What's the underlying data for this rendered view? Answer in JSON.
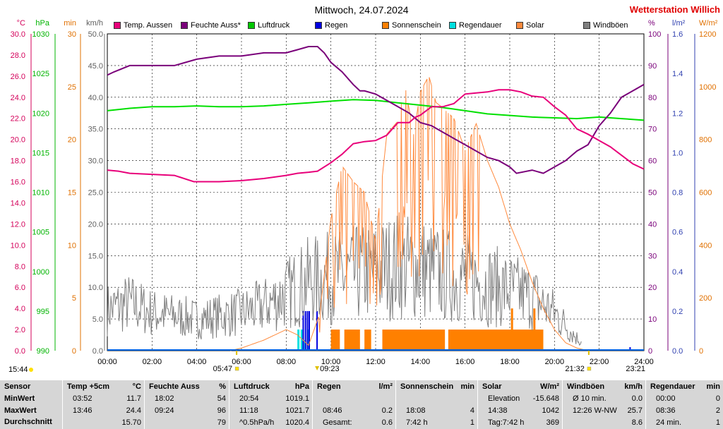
{
  "title": "Mittwoch, 24.07.2024",
  "brand": "Wetterstation Willich",
  "legend": [
    {
      "label": "Temp. Aussen",
      "color": "#e8007a"
    },
    {
      "label": "Feuchte Auss*",
      "color": "#7a007a"
    },
    {
      "label": "Luftdruck",
      "color": "#00c800"
    },
    {
      "label": "Regen",
      "color": "#0000e0"
    },
    {
      "label": "Sonnenschein",
      "color": "#ff8000"
    },
    {
      "label": "Regendauer",
      "color": "#00e0e0"
    },
    {
      "label": "Solar",
      "color": "#ff8a3d"
    },
    {
      "label": "Windböen",
      "color": "#808080"
    }
  ],
  "axes": {
    "temp": {
      "unit": "°C",
      "color": "#d4005a",
      "ticks": [
        "0.0",
        "2.0",
        "4.0",
        "6.0",
        "8.0",
        "10.0",
        "12.0",
        "14.0",
        "16.0",
        "18.0",
        "20.0",
        "22.0",
        "24.0",
        "26.0",
        "28.0",
        "30.0"
      ]
    },
    "pressure": {
      "unit": "hPa",
      "color": "#00b400",
      "ticks": [
        "990",
        "995",
        "1000",
        "1005",
        "1010",
        "1015",
        "1020",
        "1025",
        "1030"
      ]
    },
    "minutes": {
      "unit": "min",
      "color": "#e07000",
      "ticks": [
        "0",
        "5",
        "10",
        "15",
        "20",
        "25",
        "30"
      ]
    },
    "wind": {
      "unit": "km/h",
      "color": "#606060",
      "ticks": [
        "0.0",
        "5.0",
        "10.0",
        "15.0",
        "20.0",
        "25.0",
        "30.0",
        "35.0",
        "40.0",
        "45.0",
        "50.0"
      ]
    },
    "humidity": {
      "unit": "%",
      "color": "#7a007a",
      "ticks": [
        "0",
        "10",
        "20",
        "30",
        "40",
        "50",
        "60",
        "70",
        "80",
        "90",
        "100"
      ]
    },
    "rain": {
      "unit": "l/m²",
      "color": "#3040b0",
      "ticks": [
        "0.0",
        "0.2",
        "0.4",
        "0.6",
        "0.8",
        "1.0",
        "1.2",
        "1.4",
        "1.6"
      ]
    },
    "solar": {
      "unit": "W/m²",
      "color": "#e07000",
      "ticks": [
        "0",
        "200",
        "400",
        "600",
        "800",
        "1000",
        "1200"
      ]
    },
    "time": [
      "00:00",
      "02:00",
      "04:00",
      "06:00",
      "08:00",
      "10:00",
      "12:00",
      "14:00",
      "16:00",
      "18:00",
      "20:00",
      "22:00",
      "24:00"
    ]
  },
  "markers": {
    "sunrise": "05:47",
    "sunset": "21:32",
    "rain_start": "09:23",
    "rain_end": "23:21",
    "current_time": "15:44"
  },
  "chart_data": {
    "type": "line",
    "x_unit": "hour",
    "xlim": [
      0,
      24
    ],
    "series": [
      {
        "name": "Temp. Aussen",
        "axis": "°C",
        "x": [
          0,
          0.5,
          1,
          2,
          3,
          3.87,
          4.5,
          5,
          6,
          7,
          8,
          8.5,
          9,
          9.4,
          10,
          10.5,
          11,
          11.5,
          12,
          12.5,
          13,
          13.5,
          13.77,
          14,
          14.5,
          15,
          15.5,
          16,
          16.5,
          17,
          17.5,
          18,
          18.5,
          19,
          19.5,
          20,
          20.5,
          21,
          21.5,
          22,
          22.5,
          23,
          23.5,
          24
        ],
        "values": [
          17.1,
          17.0,
          16.8,
          16.7,
          16.6,
          16.0,
          16.0,
          16.0,
          16.1,
          16.3,
          16.6,
          16.8,
          16.9,
          17.0,
          17.8,
          18.6,
          19.6,
          19.8,
          19.9,
          20.4,
          21.6,
          21.6,
          22.1,
          22.3,
          23.1,
          23.1,
          23.4,
          24.3,
          24.4,
          24.5,
          24.7,
          24.7,
          24.5,
          24.1,
          24.0,
          23.1,
          22.3,
          21.0,
          20.5,
          19.9,
          19.3,
          18.5,
          17.7,
          17.2
        ]
      },
      {
        "name": "Feuchte Auss*",
        "axis": "%",
        "x": [
          0,
          0.3,
          1,
          2,
          3,
          4,
          5,
          6,
          7,
          8,
          8.5,
          9,
          9.4,
          9.7,
          10,
          10.5,
          11,
          11.3,
          11.5,
          12,
          12.5,
          13,
          13.5,
          14,
          14.5,
          15,
          15.5,
          16,
          16.5,
          17,
          17.5,
          18,
          18.3,
          19,
          19.5,
          20,
          20.5,
          21,
          21.5,
          22,
          22.5,
          23,
          23.5,
          24
        ],
        "values": [
          87,
          88,
          90,
          90,
          90,
          92,
          93,
          93,
          94,
          94,
          95,
          96,
          96,
          94,
          91,
          88,
          84,
          82,
          82,
          81,
          79,
          77,
          75,
          72,
          71,
          69,
          67,
          65,
          63,
          61,
          60,
          58,
          56,
          57,
          56,
          58,
          60,
          63,
          65,
          71,
          75,
          80,
          82,
          84
        ]
      },
      {
        "name": "Luftdruck",
        "axis": "hPa",
        "x": [
          0,
          1,
          2,
          3,
          4,
          5,
          6,
          7,
          8,
          9,
          10,
          11,
          12,
          13,
          14,
          15,
          16,
          17,
          18,
          19,
          20,
          21,
          22,
          23,
          24
        ],
        "values": [
          1020.3,
          1020.6,
          1020.8,
          1020.8,
          1020.9,
          1020.8,
          1020.8,
          1020.9,
          1021.1,
          1021.3,
          1021.5,
          1021.7,
          1021.6,
          1021.3,
          1021.0,
          1020.7,
          1020.3,
          1019.9,
          1019.7,
          1019.5,
          1019.4,
          1019.3,
          1019.5,
          1019.3,
          1019.1
        ]
      },
      {
        "name": "Solar",
        "axis": "W/m²",
        "x": [
          0,
          5.5,
          6,
          7,
          8,
          8.5,
          9,
          9.5,
          10,
          10.5,
          11,
          11.5,
          12,
          12.5,
          13,
          13.3,
          13.7,
          14,
          14.38,
          14.7,
          15,
          15.5,
          16,
          16.5,
          17,
          17.5,
          18,
          18.5,
          19,
          19.5,
          20,
          20.5,
          21,
          21.5,
          24
        ],
        "values": [
          0,
          0,
          10,
          40,
          80,
          60,
          20,
          140,
          500,
          700,
          640,
          600,
          420,
          820,
          870,
          1010,
          820,
          980,
          1042,
          940,
          920,
          880,
          760,
          860,
          720,
          620,
          480,
          380,
          260,
          160,
          80,
          30,
          10,
          0,
          0
        ]
      },
      {
        "name": "Windböen",
        "axis": "km/h",
        "x": [
          0,
          1,
          2,
          3,
          4,
          5,
          6,
          7,
          8,
          9,
          10,
          11,
          12,
          13,
          14,
          15,
          16,
          17,
          18,
          19,
          20,
          21,
          22,
          23,
          24
        ],
        "values": [
          6.5,
          7.5,
          6,
          5.5,
          5,
          5.5,
          6,
          7,
          9,
          11,
          11.5,
          12,
          12.5,
          13.5,
          13,
          12,
          11.5,
          10.5,
          9.5,
          8.5,
          6,
          2,
          0,
          0,
          0
        ]
      },
      {
        "name": "Regen",
        "axis": "l/m²",
        "x": [
          8.73,
          8.83,
          8.92,
          9.0,
          9.35,
          23.35
        ],
        "values": [
          0.2,
          0.2,
          0.2,
          0.2,
          0.2,
          0.0
        ]
      },
      {
        "name": "Regendauer",
        "axis": "min",
        "x": [
          8.5,
          8.65,
          8.8,
          8.95
        ],
        "values": [
          2,
          2,
          1,
          2
        ]
      },
      {
        "name": "Sonnenschein",
        "axis": "min",
        "intervals": [
          [
            10.0,
            10.4
          ],
          [
            10.6,
            11.3
          ],
          [
            11.5,
            11.8
          ],
          [
            12.3,
            15.1
          ],
          [
            15.25,
            19.5
          ]
        ],
        "values": 2,
        "spikes": [
          [
            18.1,
            4
          ],
          [
            19.1,
            4
          ]
        ]
      }
    ]
  },
  "stats": {
    "row_labels": [
      "Sensor",
      "MinWert",
      "MaxWert",
      "Durchschnitt"
    ],
    "columns": [
      {
        "title": "Temp +5cm",
        "unit": "°C",
        "rows": [
          [
            "03:52",
            "11.7"
          ],
          [
            "13:46",
            "24.4"
          ],
          [
            "",
            "15.70"
          ]
        ]
      },
      {
        "title": "Feuchte Auss",
        "unit": "%",
        "rows": [
          [
            "18:02",
            "54"
          ],
          [
            "09:24",
            "96"
          ],
          [
            "",
            "79"
          ]
        ]
      },
      {
        "title": "Luftdruck",
        "unit": "hPa",
        "rows": [
          [
            "20:54",
            "1019.1"
          ],
          [
            "11:18",
            "1021.7"
          ],
          [
            "^0.5hPa/h",
            "1020.4"
          ]
        ]
      },
      {
        "title": "Regen",
        "unit": "l/m²",
        "rows": [
          [
            "",
            ""
          ],
          [
            "08:46",
            "0.2"
          ],
          [
            "Gesamt:",
            "0.6"
          ]
        ]
      },
      {
        "title": "Sonnenschein",
        "unit": "min",
        "rows": [
          [
            "",
            ""
          ],
          [
            "18:08",
            "4"
          ],
          [
            "7:42 h",
            "1"
          ]
        ]
      },
      {
        "title": "Solar",
        "unit": "W/m²",
        "rows": [
          [
            "Elevation",
            "-15.648"
          ],
          [
            "14:38",
            "1042"
          ],
          [
            "Tag:7:42 h",
            "369"
          ]
        ]
      },
      {
        "title": "Windböen",
        "unit": "km/h",
        "rows": [
          [
            "Ø 10 min.",
            "0.0"
          ],
          [
            "12:26   W-NW",
            "25.7"
          ],
          [
            "",
            "8.6"
          ]
        ]
      },
      {
        "title": "Regendauer",
        "unit": "min",
        "rows": [
          [
            "00:00",
            "0"
          ],
          [
            "08:36",
            "2"
          ],
          [
            "24 min.",
            "1"
          ]
        ]
      }
    ]
  }
}
